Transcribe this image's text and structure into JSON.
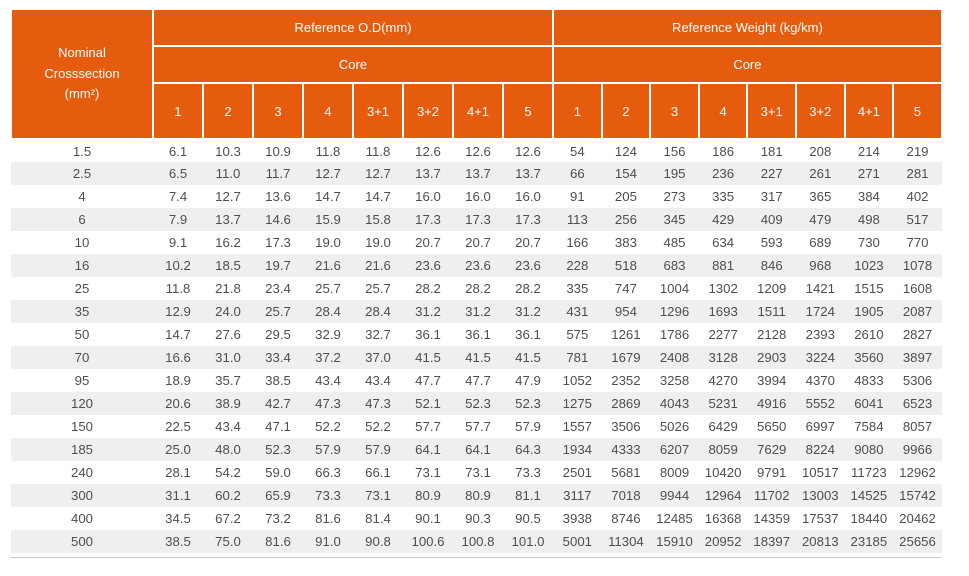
{
  "colors": {
    "header_bg": "#e55c0e",
    "stripe_bg": "#efefef",
    "body_text": "#4e4e4e"
  },
  "table": {
    "nominal_header": {
      "lines": [
        "Nominal",
        "Crosssection",
        "(mm²)"
      ]
    },
    "sections": [
      {
        "title": "Reference O.D(mm)",
        "subtitle": "Core",
        "columns": [
          "1",
          "2",
          "3",
          "4",
          "3+1",
          "3+2",
          "4+1",
          "5"
        ]
      },
      {
        "title": "Reference Weight (kg/km)",
        "subtitle": "Core",
        "columns": [
          "1",
          "2",
          "3",
          "4",
          "3+1",
          "3+2",
          "4+1",
          "5"
        ]
      }
    ],
    "rows": [
      {
        "nominal": "1.5",
        "od": [
          "6.1",
          "10.3",
          "10.9",
          "11.8",
          "11.8",
          "12.6",
          "12.6",
          "12.6"
        ],
        "weight": [
          "54",
          "124",
          "156",
          "186",
          "181",
          "208",
          "214",
          "219"
        ]
      },
      {
        "nominal": "2.5",
        "od": [
          "6.5",
          "11.0",
          "11.7",
          "12.7",
          "12.7",
          "13.7",
          "13.7",
          "13.7"
        ],
        "weight": [
          "66",
          "154",
          "195",
          "236",
          "227",
          "261",
          "271",
          "281"
        ]
      },
      {
        "nominal": "4",
        "od": [
          "7.4",
          "12.7",
          "13.6",
          "14.7",
          "14.7",
          "16.0",
          "16.0",
          "16.0"
        ],
        "weight": [
          "91",
          "205",
          "273",
          "335",
          "317",
          "365",
          "384",
          "402"
        ]
      },
      {
        "nominal": "6",
        "od": [
          "7.9",
          "13.7",
          "14.6",
          "15.9",
          "15.8",
          "17.3",
          "17.3",
          "17.3"
        ],
        "weight": [
          "113",
          "256",
          "345",
          "429",
          "409",
          "479",
          "498",
          "517"
        ]
      },
      {
        "nominal": "10",
        "od": [
          "9.1",
          "16.2",
          "17.3",
          "19.0",
          "19.0",
          "20.7",
          "20.7",
          "20.7"
        ],
        "weight": [
          "166",
          "383",
          "485",
          "634",
          "593",
          "689",
          "730",
          "770"
        ]
      },
      {
        "nominal": "16",
        "od": [
          "10.2",
          "18.5",
          "19.7",
          "21.6",
          "21.6",
          "23.6",
          "23.6",
          "23.6"
        ],
        "weight": [
          "228",
          "518",
          "683",
          "881",
          "846",
          "968",
          "1023",
          "1078"
        ]
      },
      {
        "nominal": "25",
        "od": [
          "11.8",
          "21.8",
          "23.4",
          "25.7",
          "25.7",
          "28.2",
          "28.2",
          "28.2"
        ],
        "weight": [
          "335",
          "747",
          "1004",
          "1302",
          "1209",
          "1421",
          "1515",
          "1608"
        ]
      },
      {
        "nominal": "35",
        "od": [
          "12.9",
          "24.0",
          "25.7",
          "28.4",
          "28.4",
          "31.2",
          "31.2",
          "31.2"
        ],
        "weight": [
          "431",
          "954",
          "1296",
          "1693",
          "1511",
          "1724",
          "1905",
          "2087"
        ]
      },
      {
        "nominal": "50",
        "od": [
          "14.7",
          "27.6",
          "29.5",
          "32.9",
          "32.7",
          "36.1",
          "36.1",
          "36.1"
        ],
        "weight": [
          "575",
          "1261",
          "1786",
          "2277",
          "2128",
          "2393",
          "2610",
          "2827"
        ]
      },
      {
        "nominal": "70",
        "od": [
          "16.6",
          "31.0",
          "33.4",
          "37.2",
          "37.0",
          "41.5",
          "41.5",
          "41.5"
        ],
        "weight": [
          "781",
          "1679",
          "2408",
          "3128",
          "2903",
          "3224",
          "3560",
          "3897"
        ]
      },
      {
        "nominal": "95",
        "od": [
          "18.9",
          "35.7",
          "38.5",
          "43.4",
          "43.4",
          "47.7",
          "47.7",
          "47.9"
        ],
        "weight": [
          "1052",
          "2352",
          "3258",
          "4270",
          "3994",
          "4370",
          "4833",
          "5306"
        ]
      },
      {
        "nominal": "120",
        "od": [
          "20.6",
          "38.9",
          "42.7",
          "47.3",
          "47.3",
          "52.1",
          "52.3",
          "52.3"
        ],
        "weight": [
          "1275",
          "2869",
          "4043",
          "5231",
          "4916",
          "5552",
          "6041",
          "6523"
        ]
      },
      {
        "nominal": "150",
        "od": [
          "22.5",
          "43.4",
          "47.1",
          "52.2",
          "52.2",
          "57.7",
          "57.7",
          "57.9"
        ],
        "weight": [
          "1557",
          "3506",
          "5026",
          "6429",
          "5650",
          "6997",
          "7584",
          "8057"
        ]
      },
      {
        "nominal": "185",
        "od": [
          "25.0",
          "48.0",
          "52.3",
          "57.9",
          "57.9",
          "64.1",
          "64.1",
          "64.3"
        ],
        "weight": [
          "1934",
          "4333",
          "6207",
          "8059",
          "7629",
          "8224",
          "9080",
          "9966"
        ]
      },
      {
        "nominal": "240",
        "od": [
          "28.1",
          "54.2",
          "59.0",
          "66.3",
          "66.1",
          "73.1",
          "73.1",
          "73.3"
        ],
        "weight": [
          "2501",
          "5681",
          "8009",
          "10420",
          "9791",
          "10517",
          "11723",
          "12962"
        ]
      },
      {
        "nominal": "300",
        "od": [
          "31.1",
          "60.2",
          "65.9",
          "73.3",
          "73.1",
          "80.9",
          "80.9",
          "81.1"
        ],
        "weight": [
          "3117",
          "7018",
          "9944",
          "12964",
          "11702",
          "13003",
          "14525",
          "15742"
        ]
      },
      {
        "nominal": "400",
        "od": [
          "34.5",
          "67.2",
          "73.2",
          "81.6",
          "81.4",
          "90.1",
          "90.3",
          "90.5"
        ],
        "weight": [
          "3938",
          "8746",
          "12485",
          "16368",
          "14359",
          "17537",
          "18440",
          "20462"
        ]
      },
      {
        "nominal": "500",
        "od": [
          "38.5",
          "75.0",
          "81.6",
          "91.0",
          "90.8",
          "100.6",
          "100.8",
          "101.0"
        ],
        "weight": [
          "5001",
          "11304",
          "15910",
          "20952",
          "18397",
          "20813",
          "23185",
          "25656"
        ]
      }
    ]
  }
}
